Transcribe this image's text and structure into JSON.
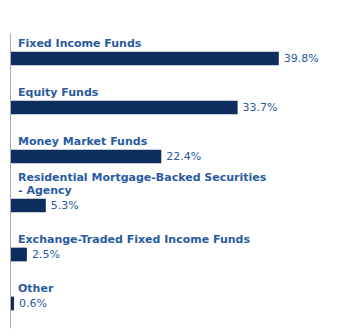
{
  "chart_data": {
    "type": "bar",
    "orientation": "horizontal",
    "categories": [
      "Fixed Income Funds",
      "Equity Funds",
      "Money Market Funds",
      "Residential Mortgage-Backed Securities\n- Agency",
      "Exchange-Traded Fixed Income Funds",
      "Other"
    ],
    "values": [
      39.8,
      33.7,
      22.4,
      5.3,
      2.5,
      0.6
    ],
    "value_labels": [
      "39.8%",
      "33.7%",
      "22.4%",
      "5.3%",
      "2.5%",
      "0.6%"
    ],
    "color": "#0d2d5e",
    "xlim": [
      0,
      49.75
    ],
    "grid": false,
    "data_labels": true,
    "tick_labels": false
  }
}
